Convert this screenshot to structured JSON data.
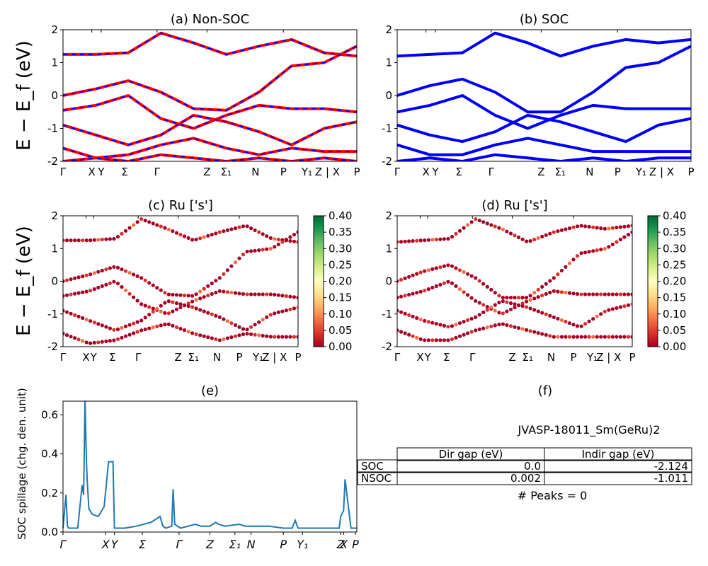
{
  "figure": {
    "ylabel_main": "E − E_f (eV)",
    "e_ylabel": "SOC spillage (chg. den. unit)"
  },
  "chart_data": [
    {
      "id": "a",
      "type": "line",
      "title": "(a) Non-SOC",
      "ylim": [
        -2,
        2
      ],
      "yticks": [
        "-2",
        "-1",
        "0",
        "1",
        "2"
      ],
      "kpath_labels": [
        "Γ",
        "X",
        "Y",
        "Σ",
        "Γ",
        "Z",
        "Σ₁",
        "N",
        "P",
        "Y₁",
        "Z | X",
        "P"
      ],
      "series": [
        {
          "color": "#ff0000",
          "values": [
            1.25,
            1.25,
            1.3,
            1.9,
            1.6,
            1.25,
            1.5,
            1.7,
            1.3,
            1.2
          ]
        },
        {
          "color": "#ff0000",
          "values": [
            0.0,
            0.2,
            0.45,
            0.1,
            -0.4,
            -0.45,
            0.1,
            0.9,
            1.0,
            1.5
          ]
        },
        {
          "color": "#ff0000",
          "values": [
            -0.45,
            -0.3,
            0.0,
            -0.7,
            -1.0,
            -0.6,
            -0.3,
            -0.4,
            -0.4,
            -0.5
          ]
        },
        {
          "color": "#ff0000",
          "values": [
            -0.9,
            -1.2,
            -1.5,
            -1.2,
            -0.6,
            -0.8,
            -1.1,
            -1.5,
            -1.0,
            -0.8
          ]
        },
        {
          "color": "#ff0000",
          "values": [
            -1.6,
            -1.9,
            -1.8,
            -1.5,
            -1.3,
            -1.6,
            -1.8,
            -1.6,
            -1.7,
            -1.7
          ]
        },
        {
          "color": "#ff0000",
          "values": [
            -2.0,
            -1.9,
            -2.0,
            -1.8,
            -1.9,
            -2.0,
            -1.9,
            -2.0,
            -1.9,
            -2.0
          ]
        }
      ]
    },
    {
      "id": "b",
      "type": "line",
      "title": "(b) SOC",
      "ylim": [
        -2,
        2
      ],
      "yticks": [
        "-2",
        "-1",
        "0",
        "1",
        "2"
      ],
      "kpath_labels": [
        "Γ",
        "X",
        "Y",
        "Σ",
        "Γ",
        "Z",
        "Σ₁",
        "N",
        "P",
        "Y₁",
        "Z | X",
        "P"
      ],
      "series": [
        {
          "color": "#0000ff",
          "values": [
            1.2,
            1.25,
            1.3,
            1.9,
            1.6,
            1.2,
            1.5,
            1.7,
            1.6,
            1.7
          ]
        },
        {
          "color": "#0000ff",
          "values": [
            0.0,
            0.3,
            0.5,
            0.1,
            -0.5,
            -0.5,
            0.1,
            0.85,
            1.0,
            1.5
          ]
        },
        {
          "color": "#0000ff",
          "values": [
            -0.5,
            -0.3,
            0.0,
            -0.6,
            -1.0,
            -0.6,
            -0.3,
            -0.4,
            -0.4,
            -0.4
          ]
        },
        {
          "color": "#0000ff",
          "values": [
            -0.9,
            -1.2,
            -1.4,
            -1.1,
            -0.6,
            -0.8,
            -1.1,
            -1.4,
            -0.9,
            -0.7
          ]
        },
        {
          "color": "#0000ff",
          "values": [
            -1.5,
            -1.8,
            -1.8,
            -1.5,
            -1.3,
            -1.5,
            -1.7,
            -1.7,
            -1.7,
            -1.7
          ]
        },
        {
          "color": "#0000ff",
          "values": [
            -2.0,
            -1.9,
            -2.0,
            -1.8,
            -1.9,
            -2.0,
            -1.9,
            -2.0,
            -1.9,
            -1.9
          ]
        }
      ]
    },
    {
      "id": "c",
      "type": "scatter",
      "title": "(c)  Ru ['s']",
      "ylim": [
        -2,
        2
      ],
      "yticks": [
        "-2",
        "-1",
        "0",
        "1",
        "2"
      ],
      "kpath_labels": [
        "Γ",
        "X",
        "Y",
        "Σ",
        "Γ",
        "Z",
        "Σ₁",
        "N",
        "P",
        "Y₁",
        "Z | X",
        "P"
      ],
      "colorbar": {
        "min": 0.0,
        "max": 0.4,
        "ticks": [
          "0.00",
          "0.05",
          "0.10",
          "0.15",
          "0.20",
          "0.25",
          "0.30",
          "0.35",
          "0.40"
        ],
        "colors": [
          "#a50026",
          "#d73027",
          "#f46d43",
          "#fdae61",
          "#fee08b",
          "#ffffbf",
          "#d9ef8b",
          "#a6d96a",
          "#66bd63",
          "#1a9850",
          "#006837"
        ]
      },
      "series": [
        {
          "values": [
            1.25,
            1.25,
            1.3,
            1.9,
            1.6,
            1.25,
            1.5,
            1.7,
            1.3,
            1.2
          ]
        },
        {
          "values": [
            0.0,
            0.2,
            0.45,
            0.1,
            -0.4,
            -0.45,
            0.1,
            0.9,
            1.0,
            1.5
          ]
        },
        {
          "values": [
            -0.45,
            -0.3,
            0.0,
            -0.7,
            -1.0,
            -0.6,
            -0.3,
            -0.4,
            -0.4,
            -0.5
          ]
        },
        {
          "values": [
            -0.9,
            -1.2,
            -1.5,
            -1.2,
            -0.6,
            -0.8,
            -1.1,
            -1.5,
            -1.0,
            -0.8
          ]
        },
        {
          "values": [
            -1.6,
            -1.9,
            -1.8,
            -1.5,
            -1.3,
            -1.6,
            -1.8,
            -1.6,
            -1.7,
            -1.7
          ]
        }
      ]
    },
    {
      "id": "d",
      "type": "scatter",
      "title": "(d) Ru ['s']",
      "ylim": [
        -2,
        2
      ],
      "yticks": [
        "-2",
        "-1",
        "0",
        "1",
        "2"
      ],
      "kpath_labels": [
        "Γ",
        "X",
        "Y",
        "Σ",
        "Γ",
        "Z",
        "Σ₁",
        "N",
        "P",
        "Y₁",
        "Z | X",
        "P"
      ],
      "colorbar": {
        "min": 0.0,
        "max": 0.4,
        "ticks": [
          "0.00",
          "0.05",
          "0.10",
          "0.15",
          "0.20",
          "0.25",
          "0.30",
          "0.35",
          "0.40"
        ],
        "colors": [
          "#a50026",
          "#d73027",
          "#f46d43",
          "#fdae61",
          "#fee08b",
          "#ffffbf",
          "#d9ef8b",
          "#a6d96a",
          "#66bd63",
          "#1a9850",
          "#006837"
        ]
      },
      "series": [
        {
          "values": [
            1.2,
            1.25,
            1.3,
            1.9,
            1.6,
            1.2,
            1.5,
            1.7,
            1.6,
            1.7
          ]
        },
        {
          "values": [
            0.0,
            0.3,
            0.5,
            0.1,
            -0.5,
            -0.5,
            0.1,
            0.85,
            1.0,
            1.5
          ]
        },
        {
          "values": [
            -0.5,
            -0.3,
            0.0,
            -0.6,
            -1.0,
            -0.6,
            -0.3,
            -0.4,
            -0.4,
            -0.4
          ]
        },
        {
          "values": [
            -0.9,
            -1.2,
            -1.4,
            -1.1,
            -0.6,
            -0.8,
            -1.1,
            -1.4,
            -0.9,
            -0.7
          ]
        },
        {
          "values": [
            -1.5,
            -1.8,
            -1.8,
            -1.5,
            -1.3,
            -1.5,
            -1.7,
            -1.7,
            -1.7,
            -1.7
          ]
        }
      ]
    },
    {
      "id": "e",
      "type": "line",
      "title": "(e)",
      "ylabel": "SOC spillage (chg. den. unit)",
      "ylim": [
        0,
        0.67
      ],
      "yticks": [
        "0.0",
        "0.2",
        "0.4",
        "0.6"
      ],
      "kpath_labels": [
        "Γ",
        "X",
        "Y",
        "Σ",
        "Γ",
        "Z",
        "Σ₁",
        "N",
        "P",
        "Y₁",
        "Z",
        "X",
        "P"
      ],
      "color": "#1f77b4",
      "x": [
        0,
        0.01,
        0.015,
        0.02,
        0.03,
        0.05,
        0.065,
        0.07,
        0.075,
        0.08,
        0.083,
        0.088,
        0.1,
        0.12,
        0.14,
        0.155,
        0.17,
        0.175,
        0.18,
        0.19,
        0.2,
        0.21,
        0.25,
        0.3,
        0.33,
        0.34,
        0.35,
        0.37,
        0.375,
        0.38,
        0.4,
        0.45,
        0.47,
        0.5,
        0.52,
        0.53,
        0.55,
        0.6,
        0.62,
        0.65,
        0.7,
        0.75,
        0.78,
        0.79,
        0.8,
        0.85,
        0.9,
        0.93,
        0.94,
        0.945,
        0.955,
        0.96,
        0.98,
        1.0
      ],
      "y": [
        0.02,
        0.19,
        0.03,
        0.02,
        0.02,
        0.02,
        0.24,
        0.19,
        0.67,
        0.35,
        0.25,
        0.12,
        0.09,
        0.08,
        0.13,
        0.36,
        0.36,
        0.02,
        0.02,
        0.02,
        0.02,
        0.02,
        0.03,
        0.05,
        0.08,
        0.03,
        0.02,
        0.03,
        0.22,
        0.04,
        0.02,
        0.04,
        0.03,
        0.03,
        0.05,
        0.04,
        0.03,
        0.04,
        0.03,
        0.03,
        0.03,
        0.02,
        0.02,
        0.06,
        0.02,
        0.02,
        0.02,
        0.02,
        0.02,
        0.08,
        0.11,
        0.27,
        0.02,
        0.02
      ]
    }
  ],
  "info_panel": {
    "title": "(f)",
    "material": "JVASP-18011_Sm(GeRu)2",
    "table": {
      "headers": [
        "",
        "Dir gap (eV)",
        "Indir gap (eV)"
      ],
      "rows": [
        [
          "SOC",
          "0.0",
          "-2.124"
        ],
        [
          "NSOC",
          "0.002",
          "-1.011"
        ]
      ]
    },
    "peaks": "# Peaks = 0"
  }
}
